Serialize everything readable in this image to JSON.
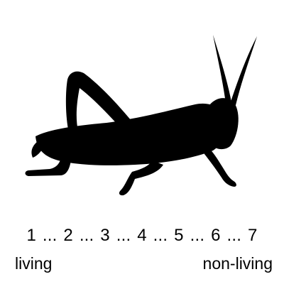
{
  "figure": {
    "icon": "grasshopper-silhouette",
    "color": "#000000"
  },
  "scale": {
    "points": [
      "1",
      "2",
      "3",
      "4",
      "5",
      "6",
      "7"
    ],
    "separator": "...",
    "left_label": "living",
    "right_label": "non-living"
  }
}
